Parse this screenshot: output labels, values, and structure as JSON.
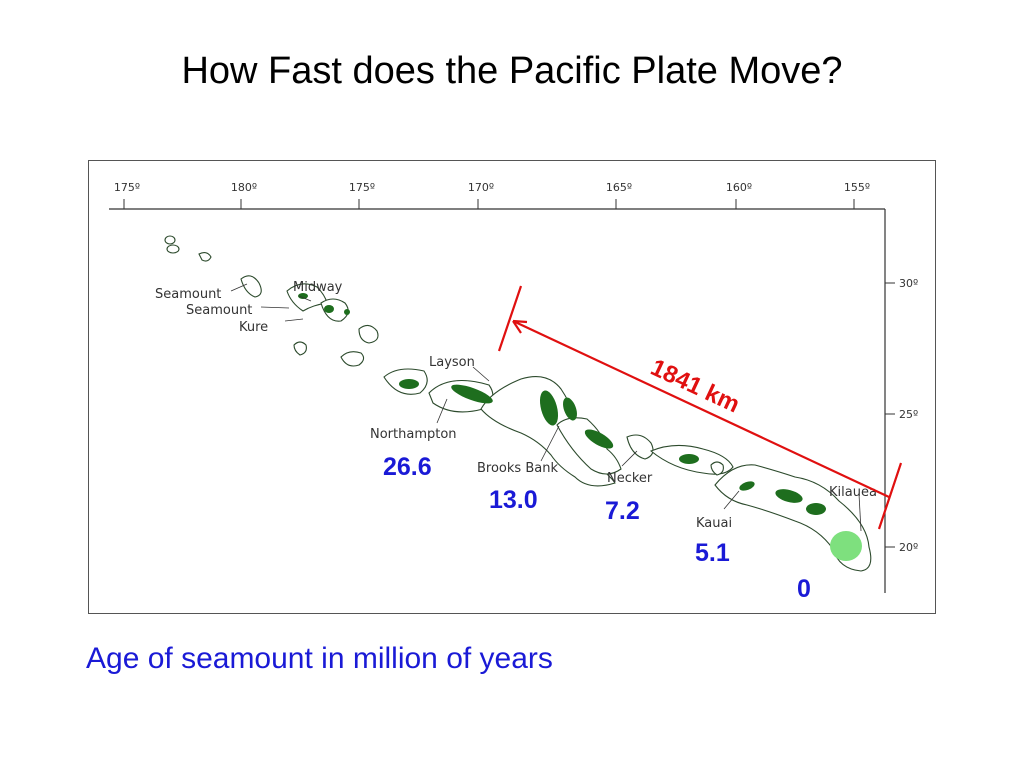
{
  "slide": {
    "title": "How Fast does the Pacific Plate Move?",
    "caption": "Age of seamount in million of years"
  },
  "map": {
    "longitude_ticks": [
      "175º",
      "180º",
      "175º",
      "170º",
      "165º",
      "160º",
      "155º"
    ],
    "latitude_ticks": [
      "30º",
      "25º",
      "20º"
    ],
    "feature_labels": {
      "seamount1": "Seamount",
      "seamount2": "Seamount",
      "kure": "Kure",
      "midway": "Midway",
      "layson": "Layson",
      "northampton": "Northampton",
      "brooks_bank": "Brooks Bank",
      "necker": "Necker",
      "kauai": "Kauai",
      "kilauea": "Kilauea"
    },
    "ages": {
      "northampton": "26.6",
      "brooks_bank": "13.0",
      "necker": "7.2",
      "kauai": "5.1",
      "kilauea": "0"
    },
    "distance_label": "1841 km",
    "colors": {
      "island": "#1e6e1e",
      "island_young": "#7ee07e",
      "outline": "#2c4a2c",
      "arrow": "#e01010",
      "age_text": "#1a1ad6"
    }
  }
}
